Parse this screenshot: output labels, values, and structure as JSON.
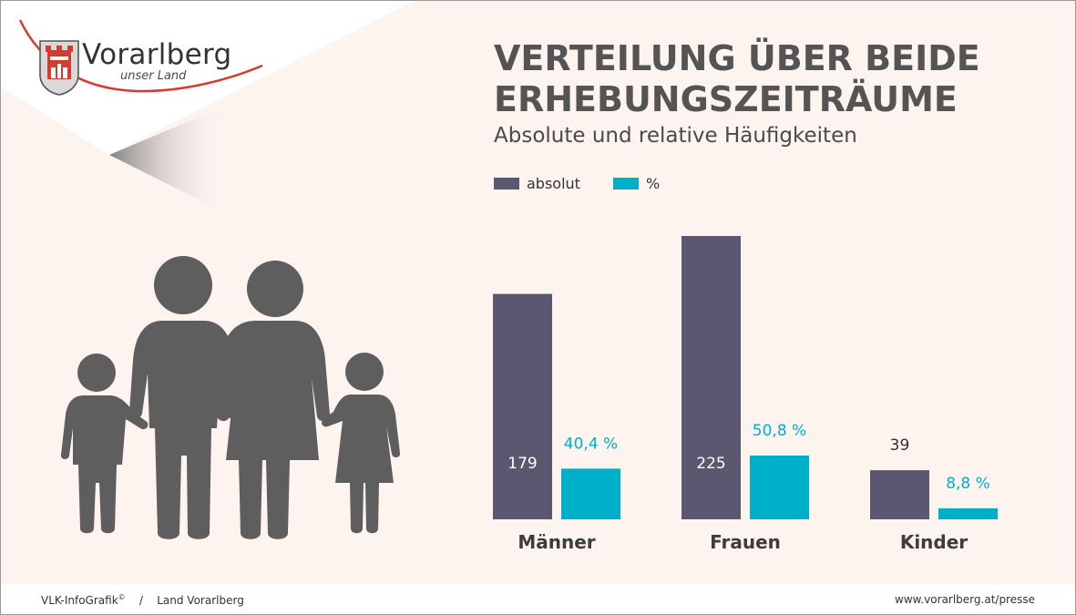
{
  "logo": {
    "name": "Vorarlberg",
    "tagline": "unser Land"
  },
  "footer": {
    "left": "VLK-InfoGrafik",
    "left_sup": "©",
    "separator": "/",
    "left_org": "Land Vorarlberg",
    "right": "www.vorarlberg.at/presse"
  },
  "colors": {
    "absolut": "#5c5770",
    "percent": "#00b0c8",
    "accent_red": "#d63b2f",
    "figures": "#5f5e5e"
  },
  "chart_data": {
    "type": "bar",
    "title": "VERTEILUNG ÜBER BEIDE ERHEBUNGSZEITRÄUME",
    "subtitle": "Absolute und relative Häufigkeiten",
    "legend_placement": "top-left",
    "grid": false,
    "categories": [
      "Männer",
      "Frauen",
      "Kinder"
    ],
    "series": [
      {
        "name": "absolut",
        "values": [
          179,
          225,
          39
        ],
        "labels": [
          "179",
          "225",
          "39"
        ]
      },
      {
        "name": "%",
        "values": [
          40.4,
          50.8,
          8.8
        ],
        "labels": [
          "40,4 %",
          "50,8 %",
          "8,8 %"
        ]
      }
    ]
  }
}
